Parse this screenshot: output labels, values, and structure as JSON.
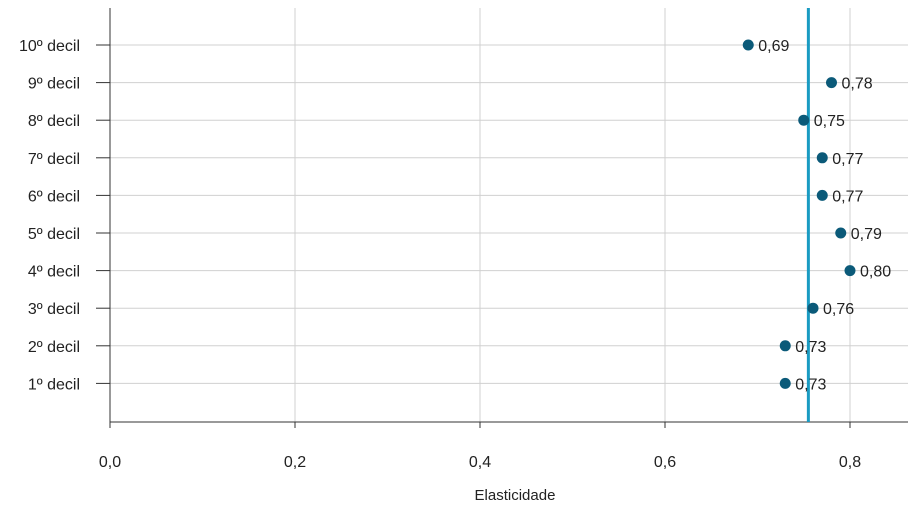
{
  "chart_data": {
    "type": "scatter",
    "title": "",
    "xlabel": "Elasticidade",
    "ylabel": "",
    "xlim": [
      0,
      0.86
    ],
    "x_ticks": [
      0.0,
      0.2,
      0.4,
      0.6,
      0.8
    ],
    "x_tick_labels": [
      "0,0",
      "0,2",
      "0,4",
      "0,6",
      "0,8"
    ],
    "categories": [
      "10º decil",
      "9º decil",
      "8º decil",
      "7º decil",
      "6º decil",
      "5º decil",
      "4º decil",
      "3º decil",
      "2º decil",
      "1º decil"
    ],
    "series": [
      {
        "values": [
          0.69,
          0.78,
          0.75,
          0.77,
          0.77,
          0.79,
          0.8,
          0.76,
          0.73,
          0.73
        ],
        "labels": [
          "0,69",
          "0,78",
          "0,75",
          "0,77",
          "0,77",
          "0,79",
          "0,80",
          "0,76",
          "0,73",
          "0,73"
        ],
        "color": "#0b5a79"
      }
    ],
    "reference_line": {
      "x": 0.755,
      "color": "#1a9bc2"
    },
    "grid": true,
    "legend": "none"
  }
}
